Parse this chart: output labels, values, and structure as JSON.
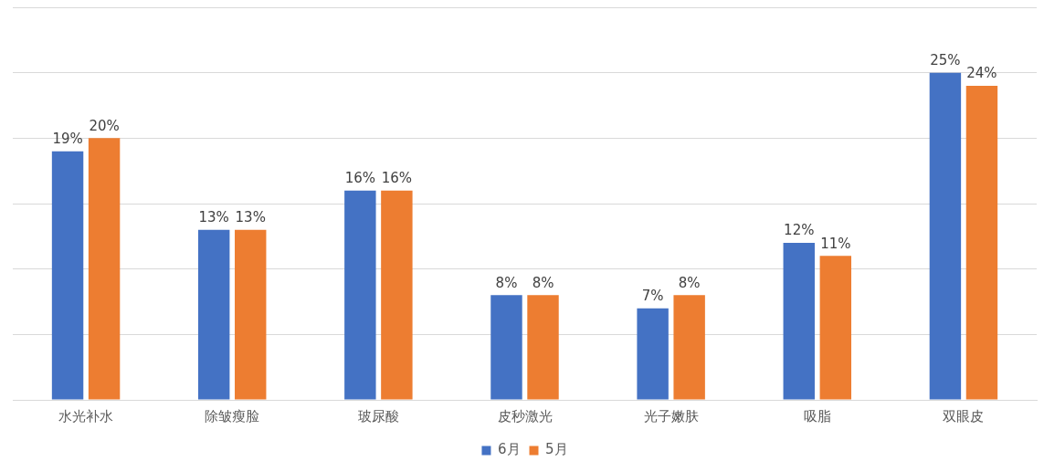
{
  "chart_data": {
    "type": "bar",
    "categories": [
      "水光补水",
      "除皱瘦脸",
      "玻尿酸",
      "皮秒激光",
      "光子嫩肤",
      "吸脂",
      "双眼皮"
    ],
    "series": [
      {
        "name": "6月",
        "color": "#4472c4",
        "values": [
          19,
          13,
          16,
          8,
          7,
          12,
          25
        ],
        "value_labels": [
          "19%",
          "13%",
          "16%",
          "8%",
          "7%",
          "12%",
          "25%"
        ]
      },
      {
        "name": "5月",
        "color": "#ed7d31",
        "values": [
          20,
          13,
          16,
          8,
          8,
          11,
          24
        ],
        "value_labels": [
          "20%",
          "13%",
          "16%",
          "8%",
          "8%",
          "11%",
          "24%"
        ]
      }
    ],
    "ylim": [
      0,
      30
    ],
    "yticks": [
      {
        "value": 0,
        "label": null
      },
      {
        "value": 5,
        "label": null
      },
      {
        "value": 10,
        "label": null
      },
      {
        "value": 15,
        "label": null
      },
      {
        "value": 20,
        "label": null
      },
      {
        "value": 25,
        "label": null
      },
      {
        "value": 30,
        "label": null
      }
    ],
    "grid": "y",
    "tick_labels": "x",
    "legend": "bottom"
  }
}
